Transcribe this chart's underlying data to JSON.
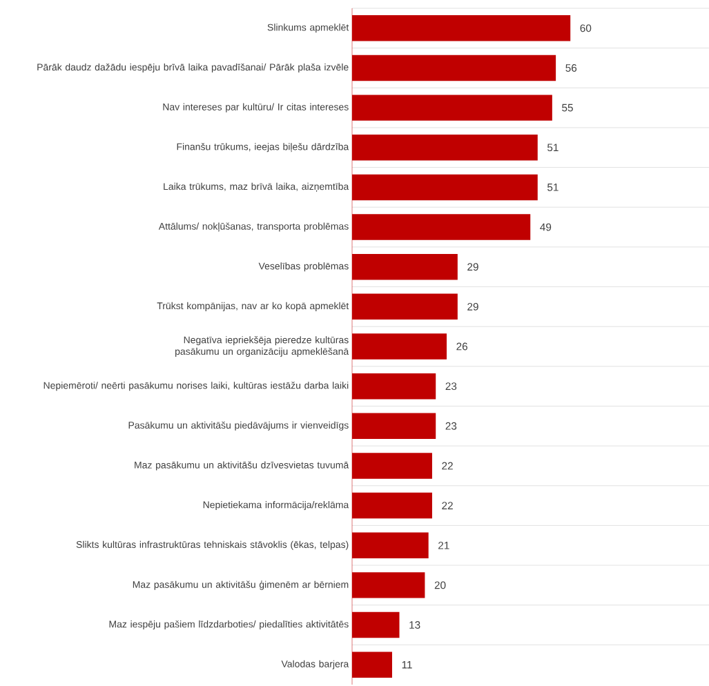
{
  "chart_data": {
    "type": "bar",
    "orientation": "horizontal",
    "color": "#c00000",
    "data_labels": true,
    "grid": "y",
    "categories": [
      "Slinkums apmeklēt",
      "Pārāk daudz dažādu iespēju brīvā laika pavadīšanai/ Pārāk plaša izvēle",
      "Nav intereses par kultūru/ Ir citas intereses",
      "Finanšu trūkums, ieejas biļešu dārdzība",
      "Laika trūkums, maz brīvā laika, aizņemtība",
      "Attālums/ nokļūšanas, transporta problēmas",
      "Veselības problēmas",
      "Trūkst kompānijas, nav ar ko kopā apmeklēt",
      "Negatīva iepriekšēja pieredze kultūras pasākumu un organizāciju apmeklēšanā",
      "Nepiemēroti/ neērti pasākumu norises laiki, kultūras iestāžu darba laiki",
      "Pasākumu un aktivitāšu piedāvājums ir vienveidīgs",
      "Maz pasākumu un aktivitāšu dzīvesvietas tuvumā",
      "Nepietiekama informācija/reklāma",
      "Slikts kultūras infrastruktūras tehniskais stāvoklis (ēkas, telpas)",
      "Maz pasākumu un aktivitāšu ģimenēm ar bērniem",
      "Maz iespēju pašiem līdzdarboties/ piedalīties aktivitātēs",
      "Valodas barjera"
    ],
    "values": [
      60,
      56,
      55,
      51,
      51,
      49,
      29,
      29,
      26,
      23,
      23,
      22,
      22,
      21,
      20,
      13,
      11
    ]
  }
}
